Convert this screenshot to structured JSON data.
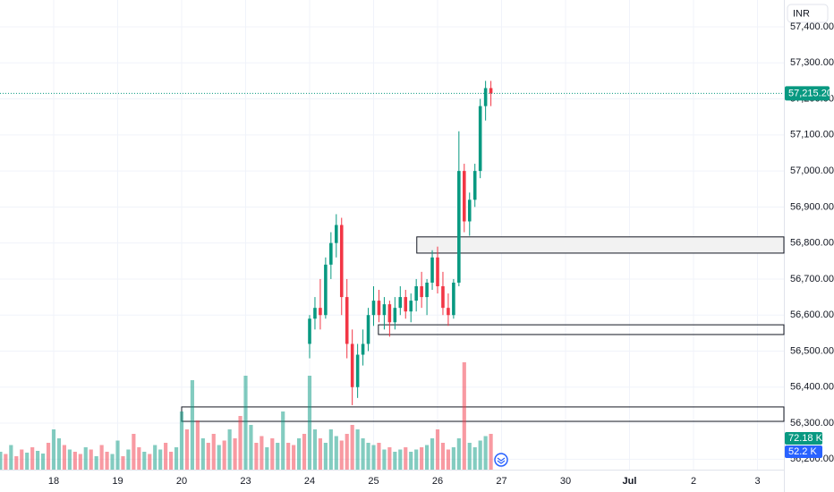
{
  "chart_data": {
    "type": "candlestick",
    "currency": "INR",
    "xlim": [
      -34.07,
      112.95
    ],
    "xticks": [
      {
        "value": -24,
        "label": "18"
      },
      {
        "value": -12,
        "label": "19"
      },
      {
        "value": 0,
        "label": "20"
      },
      {
        "value": 12,
        "label": "23"
      },
      {
        "value": 24,
        "label": "24"
      },
      {
        "value": 36,
        "label": "25"
      },
      {
        "value": 48,
        "label": "26"
      },
      {
        "value": 60,
        "label": "27"
      },
      {
        "value": 72,
        "label": "30"
      },
      {
        "value": 84,
        "label": "Jul"
      },
      {
        "value": 96,
        "label": "2"
      },
      {
        "value": 108,
        "label": "3"
      }
    ],
    "ylim": [
      56171,
      57474.5
    ],
    "yticks": [
      {
        "value": 57400,
        "label": "57,400.00"
      },
      {
        "value": 57300,
        "label": "57,300.00"
      },
      {
        "value": 57200,
        "label": "57,200.00"
      },
      {
        "value": 57100,
        "label": "57,100.00"
      },
      {
        "value": 57000,
        "label": "57,000.00"
      },
      {
        "value": 56900,
        "label": "56,900.00"
      },
      {
        "value": 56800,
        "label": "56,800.00"
      },
      {
        "value": 56700,
        "label": "56,700.00"
      },
      {
        "value": 56600,
        "label": "56,600.00"
      },
      {
        "value": 56500,
        "label": "56,500.00"
      },
      {
        "value": 56400,
        "label": "56,400.00"
      },
      {
        "value": 56300,
        "label": "56,300.00"
      },
      {
        "value": 56200,
        "label": "56,200.00"
      }
    ],
    "grid": true,
    "up_color": "#089981",
    "down_color": "#f23645",
    "candles": {
      "x": [
        24,
        25,
        26,
        27,
        28,
        29,
        30,
        31,
        32,
        33,
        34,
        35,
        36,
        37,
        38,
        39,
        40,
        41,
        42,
        43,
        44,
        45,
        46,
        47,
        48,
        49,
        50,
        51,
        52,
        53,
        54,
        55,
        56,
        57,
        58
      ],
      "open": [
        56520,
        56590,
        56620,
        56600,
        56740,
        56800,
        56850,
        56650,
        56520,
        56400,
        56490,
        56520,
        56600,
        56640,
        56600,
        56630,
        56580,
        56620,
        56650,
        56610,
        56640,
        56680,
        56650,
        56690,
        56760,
        56680,
        56620,
        56600,
        56690,
        57000,
        56860,
        56920,
        57000,
        57180,
        57230
      ],
      "high": [
        56600,
        56650,
        56700,
        56760,
        56830,
        56880,
        56870,
        56700,
        56560,
        56520,
        56560,
        56620,
        56680,
        56670,
        56650,
        56640,
        56650,
        56680,
        56670,
        56660,
        56700,
        56720,
        56700,
        56780,
        56790,
        56720,
        56660,
        56700,
        57110,
        57020,
        56940,
        57020,
        57200,
        57250,
        57250
      ],
      "low": [
        56480,
        56560,
        56560,
        56590,
        56700,
        56760,
        56600,
        56480,
        56350,
        56370,
        56460,
        56500,
        56570,
        56580,
        56560,
        56540,
        56560,
        56600,
        56590,
        56580,
        56610,
        56620,
        56600,
        56670,
        56660,
        56600,
        56570,
        56590,
        56680,
        56830,
        56820,
        56900,
        56980,
        57140,
        57180
      ],
      "close": [
        56590,
        56620,
        56600,
        56740,
        56800,
        56850,
        56650,
        56520,
        56400,
        56490,
        56520,
        56600,
        56640,
        56600,
        56630,
        56580,
        56620,
        56650,
        56610,
        56640,
        56680,
        56650,
        56690,
        56760,
        56680,
        56620,
        56600,
        56690,
        57000,
        56860,
        56920,
        57000,
        57180,
        57230,
        57215.2
      ]
    },
    "volume": {
      "x": [
        -34,
        -33,
        -32,
        -31,
        -30,
        -29,
        -28,
        -27,
        -26,
        -25,
        -24,
        -23,
        -22,
        -21,
        -20,
        -19,
        -18,
        -17,
        -16,
        -15,
        -14,
        -13,
        -12,
        -11,
        -10,
        -9,
        -8,
        -7,
        -6,
        -5,
        -4,
        -3,
        -2,
        -1,
        0,
        1,
        2,
        3,
        4,
        5,
        6,
        7,
        8,
        9,
        10,
        11,
        12,
        13,
        14,
        15,
        16,
        17,
        18,
        19,
        20,
        21,
        22,
        23,
        24,
        25,
        26,
        27,
        28,
        29,
        30,
        31,
        32,
        33,
        34,
        35,
        36,
        37,
        38,
        39,
        40,
        41,
        42,
        43,
        44,
        45,
        46,
        47,
        48,
        49,
        50,
        51,
        52,
        53,
        54,
        55,
        56,
        57,
        58
      ],
      "values": [
        40,
        35,
        55,
        30,
        45,
        38,
        50,
        42,
        36,
        60,
        90,
        70,
        55,
        45,
        40,
        35,
        50,
        45,
        30,
        55,
        40,
        35,
        65,
        30,
        45,
        80,
        50,
        40,
        35,
        55,
        45,
        60,
        40,
        50,
        130,
        90,
        200,
        110,
        70,
        60,
        80,
        55,
        65,
        90,
        70,
        120,
        210,
        100,
        60,
        75,
        50,
        70,
        60,
        130,
        60,
        55,
        70,
        80,
        210,
        90,
        70,
        60,
        90,
        75,
        65,
        80,
        100,
        90,
        70,
        60,
        55,
        60,
        45,
        50,
        40,
        45,
        50,
        40,
        45,
        50,
        55,
        70,
        90,
        60,
        45,
        50,
        70,
        240,
        60,
        50,
        65,
        75,
        80
      ],
      "up": [
        1,
        0,
        1,
        0,
        0,
        1,
        0,
        1,
        1,
        0,
        1,
        1,
        0,
        1,
        0,
        0,
        1,
        0,
        1,
        0,
        0,
        1,
        1,
        0,
        1,
        0,
        0,
        1,
        0,
        1,
        1,
        0,
        0,
        1,
        1,
        0,
        1,
        0,
        1,
        0,
        0,
        1,
        0,
        1,
        0,
        0,
        1,
        1,
        0,
        0,
        1,
        0,
        1,
        1,
        0,
        0,
        1,
        0,
        1,
        1,
        0,
        1,
        1,
        1,
        0,
        0,
        0,
        1,
        1,
        1,
        1,
        0,
        1,
        0,
        1,
        1,
        0,
        1,
        1,
        0,
        1,
        1,
        0,
        0,
        0,
        1,
        1,
        0,
        1,
        1,
        1,
        1,
        0
      ]
    },
    "zones": [
      {
        "x0": 44.1,
        "top": 56817,
        "bottom": 56772
      },
      {
        "x0": 36.9,
        "top": 56573,
        "bottom": 56546
      },
      {
        "x0": 0,
        "top": 56345,
        "bottom": 56305
      }
    ],
    "last_price": {
      "value": 57215.2,
      "label": "57,215.20"
    },
    "volume_tags": [
      "72.18 K",
      "52.2 K"
    ]
  }
}
